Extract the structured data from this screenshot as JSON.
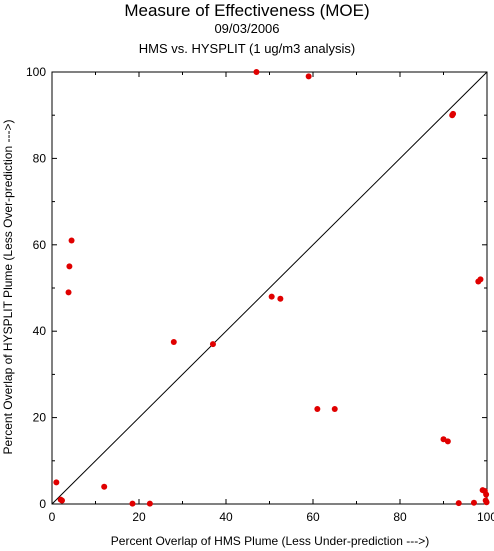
{
  "header": {
    "title": "Measure of Effectiveness (MOE)",
    "date": "09/03/2006",
    "subtitle": "HMS vs. HYSPLIT  (1 ug/m3 analysis)"
  },
  "chart_data": {
    "type": "scatter",
    "title": "Measure of Effectiveness (MOE)",
    "xlabel": "Percent Overlap of HMS Plume (Less Under-prediction --->)",
    "ylabel": "Percent Overlap of HYSPLIT Plume (Less Over-prediction --->)",
    "xlim": [
      0,
      100
    ],
    "ylim": [
      0,
      100
    ],
    "xticks": [
      0,
      20,
      40,
      60,
      80,
      100
    ],
    "yticks": [
      0,
      20,
      40,
      60,
      80,
      100
    ],
    "grid": false,
    "marker_color": "#e00000",
    "reference_line": {
      "from": [
        0,
        0
      ],
      "to": [
        100,
        100
      ]
    },
    "points": [
      {
        "x": 47,
        "y": 100
      },
      {
        "x": 59,
        "y": 99
      },
      {
        "x": 92,
        "y": 90
      },
      {
        "x": 92.2,
        "y": 90.3
      },
      {
        "x": 4.5,
        "y": 61
      },
      {
        "x": 4,
        "y": 55
      },
      {
        "x": 3.8,
        "y": 49
      },
      {
        "x": 98,
        "y": 51.5
      },
      {
        "x": 98.5,
        "y": 52
      },
      {
        "x": 50.5,
        "y": 48
      },
      {
        "x": 52.5,
        "y": 47.5
      },
      {
        "x": 28,
        "y": 37.5
      },
      {
        "x": 37,
        "y": 37
      },
      {
        "x": 61,
        "y": 22
      },
      {
        "x": 65,
        "y": 22
      },
      {
        "x": 90,
        "y": 15
      },
      {
        "x": 91,
        "y": 14.5
      },
      {
        "x": 1,
        "y": 5
      },
      {
        "x": 12,
        "y": 4
      },
      {
        "x": 2,
        "y": 1
      },
      {
        "x": 2.3,
        "y": 0.8
      },
      {
        "x": 18.5,
        "y": 0.1
      },
      {
        "x": 22.5,
        "y": 0.1
      },
      {
        "x": 93.5,
        "y": 0.2
      },
      {
        "x": 97,
        "y": 0.3
      },
      {
        "x": 99,
        "y": 3.2
      },
      {
        "x": 99.5,
        "y": 3
      },
      {
        "x": 99.8,
        "y": 2.2
      },
      {
        "x": 99.7,
        "y": 0.8
      },
      {
        "x": 99.9,
        "y": 0.4
      }
    ]
  }
}
